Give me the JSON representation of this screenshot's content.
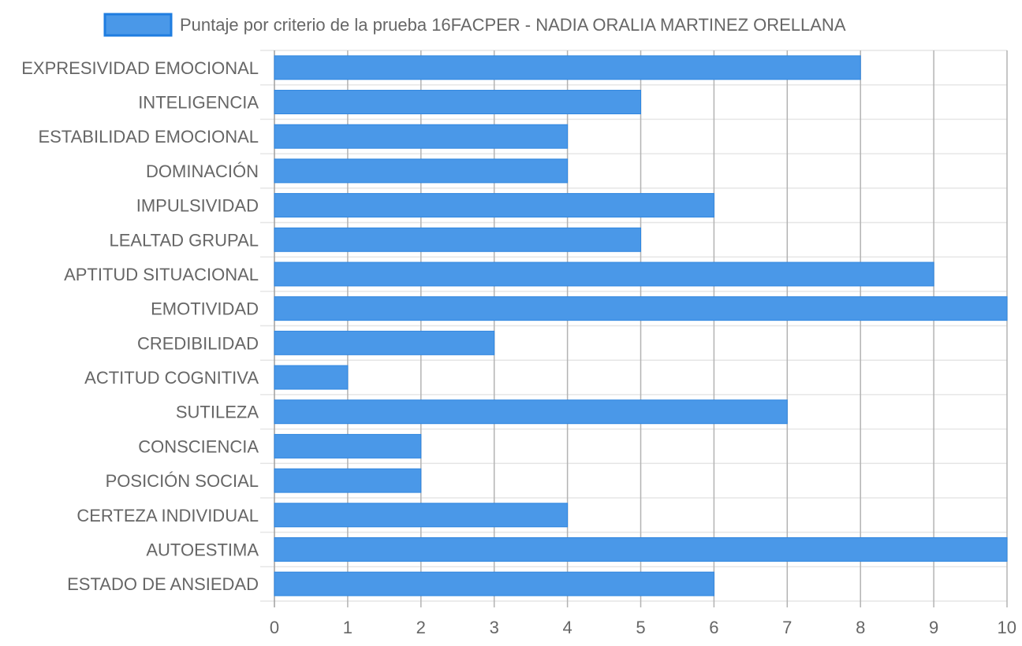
{
  "chart_data": {
    "type": "bar",
    "orientation": "horizontal",
    "series": [
      {
        "name": "Puntaje por criterio de la prueba 16FACPER - NADIA ORALIA MARTINEZ ORELLANA",
        "values": [
          8,
          5,
          4,
          4,
          6,
          5,
          9,
          10,
          3,
          1,
          7,
          2,
          2,
          4,
          10,
          6
        ]
      }
    ],
    "categories": [
      "EXPRESIVIDAD EMOCIONAL",
      "INTELIGENCIA",
      "ESTABILIDAD EMOCIONAL",
      "DOMINACIÓN",
      "IMPULSIVIDAD",
      "LEALTAD GRUPAL",
      "APTITUD SITUACIONAL",
      "EMOTIVIDAD",
      "CREDIBILIDAD",
      "ACTITUD COGNITIVA",
      "SUTILEZA",
      "CONSCIENCIA",
      "POSICIÓN SOCIAL",
      "CERTEZA INDIVIDUAL",
      "AUTOESTIMA",
      "ESTADO DE ANSIEDAD"
    ],
    "x_ticks": [
      "0",
      "1",
      "2",
      "3",
      "4",
      "5",
      "6",
      "7",
      "8",
      "9",
      "10"
    ],
    "xlim": [
      0,
      10
    ],
    "grid": true,
    "legend_position": "top",
    "colors": {
      "bar_fill": "#4a98e8",
      "bar_border": "#2f86e0",
      "legend_fill": "#4a98e8",
      "legend_border": "#1f7de0",
      "grid_major": "#b3b3b3",
      "grid_minor": "#e6e6e6",
      "text": "#666666"
    }
  }
}
